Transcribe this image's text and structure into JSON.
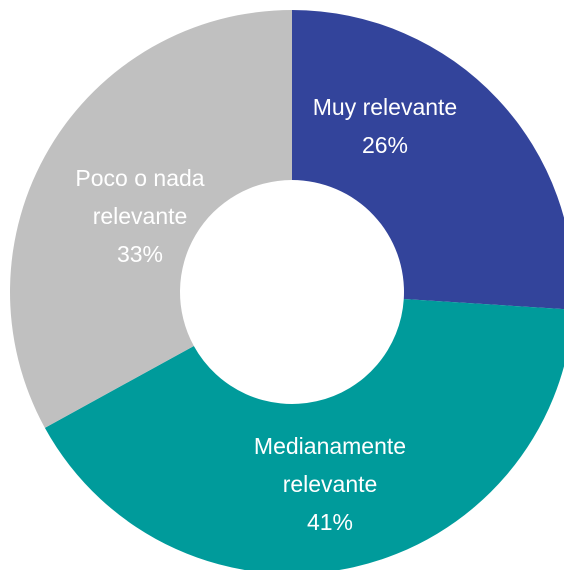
{
  "chart_data": {
    "type": "pie",
    "categories": [
      "Muy relevante",
      "Medianamente relevante",
      "Poco o nada relevante"
    ],
    "values": [
      26,
      41,
      33
    ],
    "value_labels": [
      "26%",
      "41%",
      "33%"
    ],
    "colors": [
      "#33449b",
      "#009b9b",
      "#c0c0c0"
    ],
    "donut": true
  }
}
